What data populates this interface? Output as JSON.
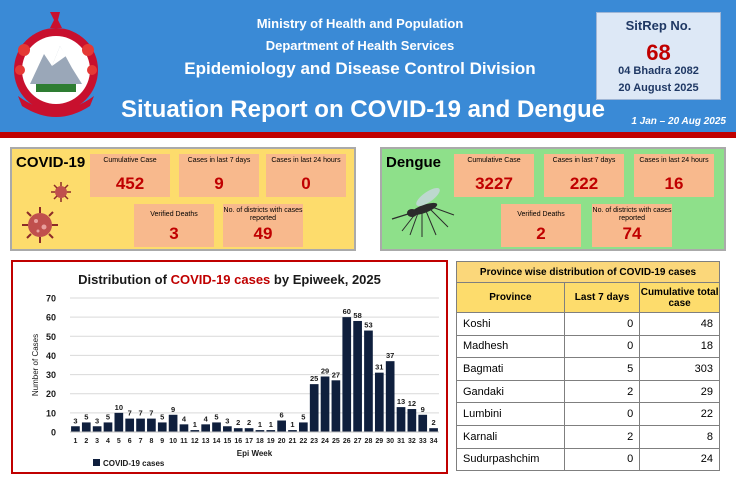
{
  "header": {
    "ministry": "Ministry of Health and Population",
    "department": "Department of Health Services",
    "division": "Epidemiology and Disease Control Division",
    "title": "Situation Report on COVID-19 and Dengue",
    "period": "1 Jan – 20 Aug 2025",
    "accent": "#3a8ad6",
    "band_color": "#c00000"
  },
  "sitrep": {
    "label": "SitRep No.",
    "number": "68",
    "nepali_date": "04 Bhadra 2082",
    "english_date": "20 August 2025"
  },
  "covid": {
    "title": "COVID-19",
    "cumulative_label": "Cumulative Case",
    "cumulative": "452",
    "last7_label": "Cases in last 7 days",
    "last7": "9",
    "last24_label": "Cases in last 24 hours",
    "last24": "0",
    "deaths_label": "Verified Deaths",
    "deaths": "3",
    "districts_label": "No. of districts with cases reported",
    "districts": "49",
    "icon": "virus-icon"
  },
  "dengue": {
    "title": "Dengue",
    "cumulative_label": "Cumulative Case",
    "cumulative": "3227",
    "last7_label": "Cases in last 7 days",
    "last7": "222",
    "last24_label": "Cases in last 24 hours",
    "last24": "16",
    "deaths_label": "Verified Deaths",
    "deaths": "2",
    "districts_label": "No. of districts with cases reported",
    "districts": "74",
    "icon": "mosquito-icon"
  },
  "chart_data": {
    "type": "bar",
    "title_prefix": "Distribution of ",
    "title_highlight": "COVID-19 cases",
    "title_suffix": " by Epiweek, 2025",
    "xlabel": "Epi Week",
    "ylabel": "Number of Cases",
    "ylim": [
      0,
      70
    ],
    "yticks": [
      0,
      10,
      20,
      30,
      40,
      50,
      60,
      70
    ],
    "grid": true,
    "legend": "bottom-left",
    "categories": [
      "1",
      "2",
      "3",
      "4",
      "5",
      "6",
      "7",
      "8",
      "9",
      "10",
      "11",
      "12",
      "13",
      "14",
      "15",
      "16",
      "17",
      "18",
      "19",
      "20",
      "21",
      "22",
      "23",
      "24",
      "25",
      "26",
      "27",
      "28",
      "29",
      "30",
      "31",
      "32",
      "33",
      "34"
    ],
    "series": [
      {
        "name": "COVID-19 cases",
        "color": "#0f1f3d",
        "values": [
          3,
          5,
          3,
          5,
          10,
          7,
          7,
          7,
          5,
          9,
          4,
          1,
          4,
          5,
          3,
          2,
          2,
          1,
          1,
          6,
          1,
          5,
          25,
          29,
          27,
          60,
          58,
          53,
          31,
          37,
          13,
          12,
          9,
          2
        ]
      }
    ]
  },
  "province_table": {
    "caption": "Province wise distribution of COVID-19 cases",
    "columns": [
      "Province",
      "Last 7 days",
      "Cumulative total case"
    ],
    "rows": [
      [
        "Koshi",
        "0",
        "48"
      ],
      [
        "Madhesh",
        "0",
        "18"
      ],
      [
        "Bagmati",
        "5",
        "303"
      ],
      [
        "Gandaki",
        "2",
        "29"
      ],
      [
        "Lumbini",
        "0",
        "22"
      ],
      [
        "Karnali",
        "2",
        "8"
      ],
      [
        "Sudurpashchim",
        "0",
        "24"
      ]
    ]
  }
}
